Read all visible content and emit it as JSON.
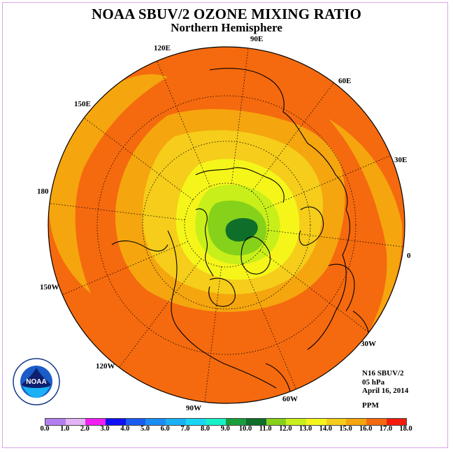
{
  "title": "NOAA SBUV/2 OZONE MIXING RATIO",
  "subtitle": "Northern Hemisphere",
  "longitude_labels": {
    "lon_90E": "90E",
    "lon_60E": "60E",
    "lon_30E": "30E",
    "lon_0": "0",
    "lon_30W": "30W",
    "lon_60W": "60W",
    "lon_90W": "90W",
    "lon_120W": "120W",
    "lon_150W": "150W",
    "lon_180": "180",
    "lon_150E": "150E",
    "lon_120E": "120E"
  },
  "info": {
    "satellite": "N16 SBUV/2",
    "level": "05 hPa",
    "date": "April 16, 2014",
    "units": "PPM"
  },
  "logo": {
    "text": "NOAA",
    "ring_text": "NATIONAL OCEANIC AND ATMOSPHERIC ADMINISTRATION · U.S. DEPARTMENT OF COMMERCE"
  },
  "colorbar": {
    "ticks": [
      "0.0",
      "1.0",
      "2.0",
      "3.0",
      "4.0",
      "5.0",
      "6.0",
      "7.0",
      "8.0",
      "9.0",
      "10.0",
      "11.0",
      "12.0",
      "13.0",
      "14.0",
      "15.0",
      "16.0",
      "17.0",
      "18.0"
    ],
    "colors": [
      "#b57ef0",
      "#e3b3f5",
      "#f21ff2",
      "#1010f5",
      "#1a5cf0",
      "#1a8ef5",
      "#1ab2f5",
      "#1ad6f5",
      "#16f2c8",
      "#1a9e3c",
      "#0e6e2a",
      "#86d11a",
      "#c8ef1a",
      "#f5f51a",
      "#f5cd1a",
      "#f5a50e",
      "#f56a0e",
      "#f51a0e",
      "#8a5a3c"
    ]
  },
  "field_levels_ppm": [
    14.5,
    13.5,
    12.5,
    11.5,
    10.5,
    9.5
  ]
}
